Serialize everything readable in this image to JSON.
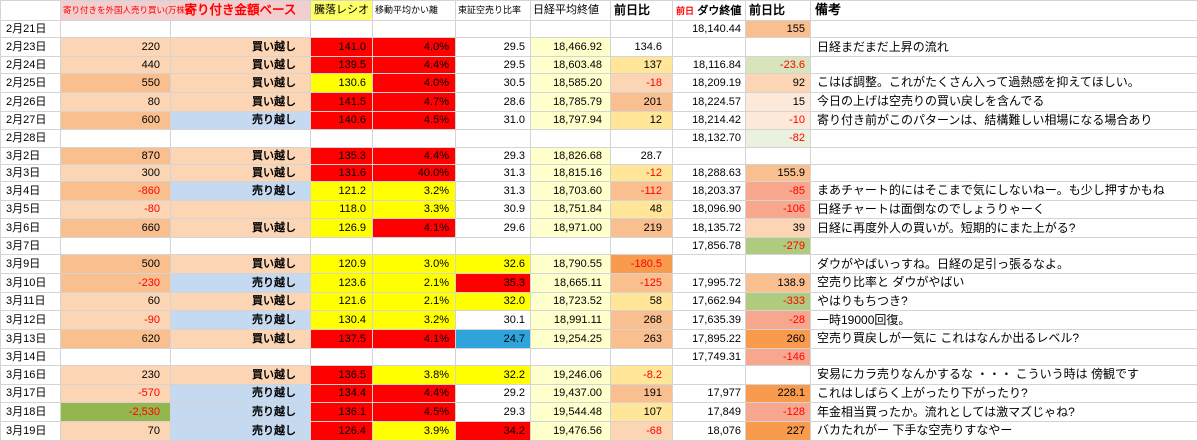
{
  "palette": {
    "rd": "#FF0000",
    "yl": "#FFFF00",
    "hy": "#FFFF66",
    "pk": "#F3CECE",
    "py": "#FFFFCC",
    "y1": "#FFE699",
    "o0": "#FDE9D9",
    "o1": "#FCD5B4",
    "o2": "#FABF8F",
    "o3": "#F89B4D",
    "sal": "#F8A78F",
    "bl": "#C5D9F1",
    "cy": "#2FA3DC",
    "g0": "#EAF1DD",
    "g1": "#D7E4BC",
    "g2": "#AFCB7F",
    "g3": "#94B64E",
    "neg_text": "#FF0000",
    "grid_line": "#D4D4D4"
  },
  "headers": {
    "date": "",
    "foreign": "寄り付きを外国人売り買い(万株)",
    "basis": "寄り付き金額ベース",
    "ratio": "騰落レシオ",
    "ma": "移動平均かい離",
    "short_ratio": "東証空売り比率",
    "nikkei": "日経平均終値",
    "nikkei_change": "前日比",
    "dow_prefix": "前日",
    "dow": "ダウ終値",
    "dow_change": "前日比",
    "note": "備考"
  },
  "rows": [
    {
      "date": "2月21日",
      "foreign": "",
      "foreign_bg": "",
      "basis": "",
      "basis_bg": "",
      "ratio": "",
      "ratio_bg": "",
      "ma": "",
      "ma_bg": "",
      "short": "",
      "short_bg": "",
      "nikkei": "",
      "nikkei_bg": "",
      "chg": "",
      "chg_bg": "",
      "dow": "18,140.44",
      "dchg": "155",
      "dchg_bg": "o2",
      "note": ""
    },
    {
      "date": "2月23日",
      "foreign": "220",
      "foreign_bg": "o1",
      "basis": "買い越し",
      "basis_bg": "o1",
      "ratio": "141.0",
      "ratio_bg": "rd",
      "ma": "4.0%",
      "ma_bg": "rd",
      "short": "29.5",
      "short_bg": "",
      "nikkei": "18,466.92",
      "nikkei_bg": "py",
      "chg": "134.6",
      "chg_bg": "",
      "dow": "",
      "dchg": "",
      "dchg_bg": "",
      "note": "日経まだまだ上昇の流れ"
    },
    {
      "date": "2月24日",
      "foreign": "440",
      "foreign_bg": "o1",
      "basis": "買い越し",
      "basis_bg": "o1",
      "ratio": "139.5",
      "ratio_bg": "rd",
      "ma": "4.4%",
      "ma_bg": "rd",
      "short": "29.5",
      "short_bg": "",
      "nikkei": "18,603.48",
      "nikkei_bg": "py",
      "chg": "137",
      "chg_bg": "y1",
      "dow": "18,116.84",
      "dchg": "-23.6",
      "dchg_bg": "g1",
      "note": ""
    },
    {
      "date": "2月25日",
      "foreign": "550",
      "foreign_bg": "o2",
      "basis": "買い越し",
      "basis_bg": "o1",
      "ratio": "130.6",
      "ratio_bg": "yl",
      "ma": "4.0%",
      "ma_bg": "rd",
      "short": "30.5",
      "short_bg": "",
      "nikkei": "18,585.20",
      "nikkei_bg": "py",
      "chg": "-18",
      "chg_bg": "o1",
      "dow": "18,209.19",
      "dchg": "92",
      "dchg_bg": "o1",
      "note": "こはば調整。これがたくさん入って過熱感を抑えてほしい。"
    },
    {
      "date": "2月26日",
      "foreign": "80",
      "foreign_bg": "o1",
      "basis": "買い越し",
      "basis_bg": "o1",
      "ratio": "141.5",
      "ratio_bg": "rd",
      "ma": "4.7%",
      "ma_bg": "rd",
      "short": "28.6",
      "short_bg": "",
      "nikkei": "18,785.79",
      "nikkei_bg": "py",
      "chg": "201",
      "chg_bg": "o2",
      "dow": "18,224.57",
      "dchg": "15",
      "dchg_bg": "o0",
      "note": "今日の上げは空売りの買い戻しを含んでる"
    },
    {
      "date": "2月27日",
      "foreign": "600",
      "foreign_bg": "o2",
      "basis": "売り越し",
      "basis_bg": "bl",
      "ratio": "140.6",
      "ratio_bg": "rd",
      "ma": "4.5%",
      "ma_bg": "rd",
      "short": "31.0",
      "short_bg": "",
      "nikkei": "18,797.94",
      "nikkei_bg": "py",
      "chg": "12",
      "chg_bg": "y1",
      "dow": "18,214.42",
      "dchg": "-10",
      "dchg_bg": "o0",
      "note": "寄り付き前がこのパターンは、結構難しい相場になる場合あり"
    },
    {
      "date": "2月28日",
      "foreign": "",
      "foreign_bg": "",
      "basis": "",
      "basis_bg": "",
      "ratio": "",
      "ratio_bg": "",
      "ma": "",
      "ma_bg": "",
      "short": "",
      "short_bg": "",
      "nikkei": "",
      "nikkei_bg": "",
      "chg": "",
      "chg_bg": "",
      "dow": "18,132.70",
      "dchg": "-82",
      "dchg_bg": "g0",
      "note": ""
    },
    {
      "date": "3月2日",
      "foreign": "870",
      "foreign_bg": "o2",
      "basis": "買い越し",
      "basis_bg": "o1",
      "ratio": "135.3",
      "ratio_bg": "rd",
      "ma": "4.4%",
      "ma_bg": "rd",
      "short": "29.3",
      "short_bg": "",
      "nikkei": "18,826.68",
      "nikkei_bg": "py",
      "chg": "28.7",
      "chg_bg": "",
      "dow": "",
      "dchg": "",
      "dchg_bg": "",
      "note": ""
    },
    {
      "date": "3月3日",
      "foreign": "300",
      "foreign_bg": "o1",
      "basis": "買い越し",
      "basis_bg": "o1",
      "ratio": "131.6",
      "ratio_bg": "rd",
      "ma": "40.0%",
      "ma_bg": "rd",
      "short": "31.3",
      "short_bg": "",
      "nikkei": "18,815.16",
      "nikkei_bg": "py",
      "chg": "-12",
      "chg_bg": "y1",
      "dow": "18,288.63",
      "dchg": "155.9",
      "dchg_bg": "o2",
      "note": ""
    },
    {
      "date": "3月4日",
      "foreign": "-860",
      "foreign_bg": "o2",
      "basis": "売り越し",
      "basis_bg": "bl",
      "ratio": "121.2",
      "ratio_bg": "yl",
      "ma": "3.2%",
      "ma_bg": "yl",
      "short": "31.3",
      "short_bg": "",
      "nikkei": "18,703.60",
      "nikkei_bg": "py",
      "chg": "-112",
      "chg_bg": "o2",
      "dow": "18,203.37",
      "dchg": "-85",
      "dchg_bg": "sal",
      "note": "まあチャート的にはそこまで気にしないねー。も少し押すかもね"
    },
    {
      "date": "3月5日",
      "foreign": "-80",
      "foreign_bg": "o1",
      "basis": "",
      "basis_bg": "o1",
      "ratio": "118.0",
      "ratio_bg": "yl",
      "ma": "3.3%",
      "ma_bg": "yl",
      "short": "30.9",
      "short_bg": "",
      "nikkei": "18,751.84",
      "nikkei_bg": "py",
      "chg": "48",
      "chg_bg": "y1",
      "dow": "18,096.90",
      "dchg": "-106",
      "dchg_bg": "sal",
      "note": "日経チャートは面倒なのでしょうりゃーく"
    },
    {
      "date": "3月6日",
      "foreign": "660",
      "foreign_bg": "o2",
      "basis": "買い越し",
      "basis_bg": "o1",
      "ratio": "126.9",
      "ratio_bg": "yl",
      "ma": "4.1%",
      "ma_bg": "rd",
      "short": "29.6",
      "short_bg": "",
      "nikkei": "18,971.00",
      "nikkei_bg": "py",
      "chg": "219",
      "chg_bg": "o2",
      "dow": "18,135.72",
      "dchg": "39",
      "dchg_bg": "o1",
      "note": "日経に再度外人の買いが。短期的にまた上がる?"
    },
    {
      "date": "3月7日",
      "foreign": "",
      "foreign_bg": "",
      "basis": "",
      "basis_bg": "",
      "ratio": "",
      "ratio_bg": "",
      "ma": "",
      "ma_bg": "",
      "short": "",
      "short_bg": "",
      "nikkei": "",
      "nikkei_bg": "",
      "chg": "",
      "chg_bg": "",
      "dow": "17,856.78",
      "dchg": "-279",
      "dchg_bg": "g2",
      "note": ""
    },
    {
      "date": "3月9日",
      "foreign": "500",
      "foreign_bg": "o2",
      "basis": "買い越し",
      "basis_bg": "o1",
      "ratio": "120.9",
      "ratio_bg": "yl",
      "ma": "3.0%",
      "ma_bg": "yl",
      "short": "32.6",
      "short_bg": "yl",
      "nikkei": "18,790.55",
      "nikkei_bg": "py",
      "chg": "-180.5",
      "chg_bg": "o3",
      "dow": "",
      "dchg": "",
      "dchg_bg": "",
      "note": "ダウがやばいっすね。日経の足引っ張るなよ。"
    },
    {
      "date": "3月10日",
      "foreign": "-230",
      "foreign_bg": "o2",
      "basis": "売り越し",
      "basis_bg": "bl",
      "ratio": "123.6",
      "ratio_bg": "yl",
      "ma": "2.1%",
      "ma_bg": "yl",
      "short": "35.3",
      "short_bg": "rd",
      "nikkei": "18,665.11",
      "nikkei_bg": "py",
      "chg": "-125",
      "chg_bg": "o2",
      "dow": "17,995.72",
      "dchg": "138.9",
      "dchg_bg": "o2",
      "note": "空売り比率と ダウがやばい"
    },
    {
      "date": "3月11日",
      "foreign": "60",
      "foreign_bg": "o1",
      "basis": "買い越し",
      "basis_bg": "o1",
      "ratio": "121.6",
      "ratio_bg": "yl",
      "ma": "2.1%",
      "ma_bg": "yl",
      "short": "32.0",
      "short_bg": "yl",
      "nikkei": "18,723.52",
      "nikkei_bg": "py",
      "chg": "58",
      "chg_bg": "y1",
      "dow": "17,662.94",
      "dchg": "-333",
      "dchg_bg": "g2",
      "note": "やはりもちつき?"
    },
    {
      "date": "3月12日",
      "foreign": "-90",
      "foreign_bg": "o1",
      "basis": "売り越し",
      "basis_bg": "bl",
      "ratio": "130.4",
      "ratio_bg": "yl",
      "ma": "3.2%",
      "ma_bg": "yl",
      "short": "30.1",
      "short_bg": "",
      "nikkei": "18,991.11",
      "nikkei_bg": "py",
      "chg": "268",
      "chg_bg": "o2",
      "dow": "17,635.39",
      "dchg": "-28",
      "dchg_bg": "sal",
      "note": "一時19000回復。"
    },
    {
      "date": "3月13日",
      "foreign": "620",
      "foreign_bg": "o2",
      "basis": "買い越し",
      "basis_bg": "o1",
      "ratio": "137.5",
      "ratio_bg": "rd",
      "ma": "4.1%",
      "ma_bg": "rd",
      "short": "24.7",
      "short_bg": "cy",
      "nikkei": "19,254.25",
      "nikkei_bg": "py",
      "chg": "263",
      "chg_bg": "o2",
      "dow": "17,895.22",
      "dchg": "260",
      "dchg_bg": "o3",
      "note": "空売り買戻しが一気に これはなんか出るレベル?"
    },
    {
      "date": "3月14日",
      "foreign": "",
      "foreign_bg": "",
      "basis": "",
      "basis_bg": "",
      "ratio": "",
      "ratio_bg": "",
      "ma": "",
      "ma_bg": "",
      "short": "",
      "short_bg": "",
      "nikkei": "",
      "nikkei_bg": "",
      "chg": "",
      "chg_bg": "",
      "dow": "17,749.31",
      "dchg": "-146",
      "dchg_bg": "sal",
      "note": ""
    },
    {
      "date": "3月16日",
      "foreign": "230",
      "foreign_bg": "o1",
      "basis": "買い越し",
      "basis_bg": "o1",
      "ratio": "136.5",
      "ratio_bg": "rd",
      "ma": "3.8%",
      "ma_bg": "yl",
      "short": "32.2",
      "short_bg": "yl",
      "nikkei": "19,246.06",
      "nikkei_bg": "py",
      "chg": "-8.2",
      "chg_bg": "y1",
      "dow": "",
      "dchg": "",
      "dchg_bg": "",
      "note": "安易にカラ売りなんかするな ・・・ こういう時は 傍観です"
    },
    {
      "date": "3月17日",
      "foreign": "-570",
      "foreign_bg": "o1",
      "basis": "売り越し",
      "basis_bg": "bl",
      "ratio": "134.4",
      "ratio_bg": "rd",
      "ma": "4.4%",
      "ma_bg": "rd",
      "short": "29.2",
      "short_bg": "",
      "nikkei": "19,437.00",
      "nikkei_bg": "py",
      "chg": "191",
      "chg_bg": "o2",
      "dow": "17,977",
      "dchg": "228.1",
      "dchg_bg": "o3",
      "note": "これはしばらく上がったり下がったり?"
    },
    {
      "date": "3月18日",
      "foreign": "-2,530",
      "foreign_bg": "g3",
      "basis": "売り越し",
      "basis_bg": "bl",
      "ratio": "136.1",
      "ratio_bg": "rd",
      "ma": "4.5%",
      "ma_bg": "rd",
      "short": "29.3",
      "short_bg": "",
      "nikkei": "19,544.48",
      "nikkei_bg": "py",
      "chg": "107",
      "chg_bg": "y1",
      "dow": "17,849",
      "dchg": "-128",
      "dchg_bg": "sal",
      "note": "年金相当買ったか。流れとしては激マズじゃね?"
    },
    {
      "date": "3月19日",
      "foreign": "70",
      "foreign_bg": "o1",
      "basis": "売り越し",
      "basis_bg": "bl",
      "ratio": "126.4",
      "ratio_bg": "rd",
      "ma": "3.9%",
      "ma_bg": "yl",
      "short": "34.2",
      "short_bg": "rd",
      "nikkei": "19,476.56",
      "nikkei_bg": "py",
      "chg": "-68",
      "chg_bg": "o1",
      "dow": "18,076",
      "dchg": "227",
      "dchg_bg": "o3",
      "note": "バカたれがー 下手な空売りすなやー"
    }
  ]
}
